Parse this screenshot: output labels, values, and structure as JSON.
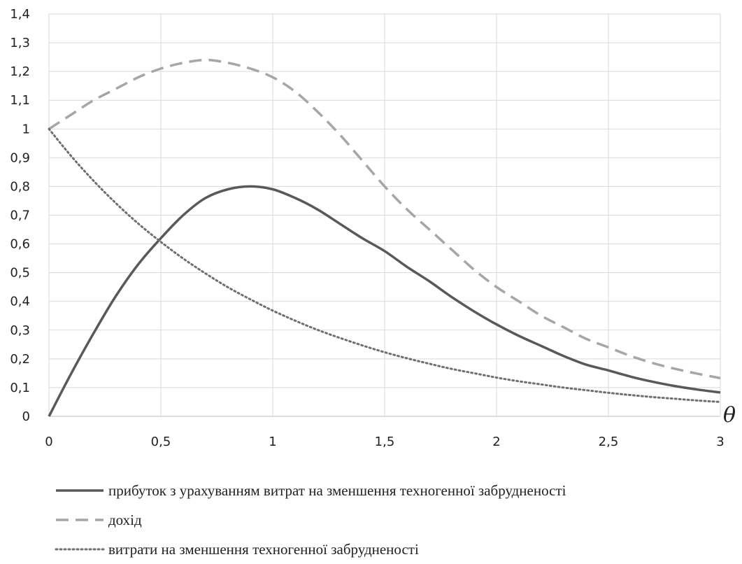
{
  "chart_data": {
    "type": "line",
    "xlabel": "θ",
    "ylabel": "",
    "xlim": [
      0,
      3
    ],
    "ylim": [
      0,
      1.4
    ],
    "x_ticks": [
      0,
      0.5,
      1,
      1.5,
      2,
      2.5,
      3
    ],
    "x_tick_labels": [
      "0",
      "0,5",
      "1",
      "1,5",
      "2",
      "2,5",
      "3"
    ],
    "y_ticks": [
      0,
      0.1,
      0.2,
      0.3,
      0.4,
      0.5,
      0.6,
      0.7,
      0.8,
      0.9,
      1,
      1.1,
      1.2,
      1.3,
      1.4
    ],
    "y_tick_labels": [
      "0",
      "0,1",
      "0,2",
      "0,3",
      "0,4",
      "0,5",
      "0,6",
      "0,7",
      "0,8",
      "0,9",
      "1",
      "1,1",
      "1,2",
      "1,3",
      "1,4"
    ],
    "grid": true,
    "legend_position": "bottom",
    "series": [
      {
        "name": "прибуток з урахуванням витрат на зменшення техногенної забрудненості",
        "style": "solid",
        "color": "#595959",
        "x": [
          0,
          0.1,
          0.2,
          0.3,
          0.4,
          0.5,
          0.6,
          0.7,
          0.8,
          0.9,
          1.0,
          1.1,
          1.2,
          1.3,
          1.4,
          1.5,
          1.6,
          1.7,
          1.8,
          1.9,
          2.0,
          2.1,
          2.2,
          2.3,
          2.4,
          2.5,
          2.6,
          2.7,
          2.8,
          2.9,
          3.0
        ],
        "values": [
          0,
          0.15,
          0.29,
          0.42,
          0.53,
          0.62,
          0.7,
          0.76,
          0.79,
          0.8,
          0.79,
          0.76,
          0.72,
          0.67,
          0.62,
          0.575,
          0.52,
          0.47,
          0.415,
          0.365,
          0.32,
          0.28,
          0.245,
          0.21,
          0.18,
          0.16,
          0.138,
          0.12,
          0.105,
          0.093,
          0.083
        ]
      },
      {
        "name": "дохід",
        "style": "dashed",
        "color": "#a6a6a6",
        "x": [
          0,
          0.1,
          0.2,
          0.3,
          0.4,
          0.5,
          0.6,
          0.7,
          0.8,
          0.9,
          1.0,
          1.1,
          1.2,
          1.3,
          1.4,
          1.5,
          1.6,
          1.7,
          1.8,
          1.9,
          2.0,
          2.1,
          2.2,
          2.3,
          2.4,
          2.5,
          2.6,
          2.7,
          2.8,
          2.9,
          3.0
        ],
        "values": [
          1.0,
          1.05,
          1.1,
          1.14,
          1.18,
          1.21,
          1.23,
          1.24,
          1.23,
          1.21,
          1.18,
          1.13,
          1.06,
          0.98,
          0.89,
          0.8,
          0.72,
          0.65,
          0.58,
          0.51,
          0.45,
          0.4,
          0.35,
          0.31,
          0.27,
          0.24,
          0.21,
          0.185,
          0.165,
          0.148,
          0.133
        ]
      },
      {
        "name": "витрати на зменшення техногенної забрудненості",
        "style": "dotted",
        "color": "#6f6f6f",
        "x": [
          0,
          0.1,
          0.2,
          0.3,
          0.4,
          0.5,
          0.6,
          0.7,
          0.8,
          0.9,
          1.0,
          1.1,
          1.2,
          1.3,
          1.4,
          1.5,
          1.6,
          1.7,
          1.8,
          1.9,
          2.0,
          2.1,
          2.2,
          2.3,
          2.4,
          2.5,
          2.6,
          2.7,
          2.8,
          2.9,
          3.0
        ],
        "values": [
          1.0,
          0.905,
          0.819,
          0.741,
          0.67,
          0.607,
          0.549,
          0.497,
          0.449,
          0.407,
          0.368,
          0.333,
          0.301,
          0.273,
          0.247,
          0.223,
          0.202,
          0.183,
          0.165,
          0.15,
          0.135,
          0.122,
          0.111,
          0.1,
          0.091,
          0.082,
          0.074,
          0.067,
          0.061,
          0.055,
          0.05
        ]
      }
    ]
  }
}
